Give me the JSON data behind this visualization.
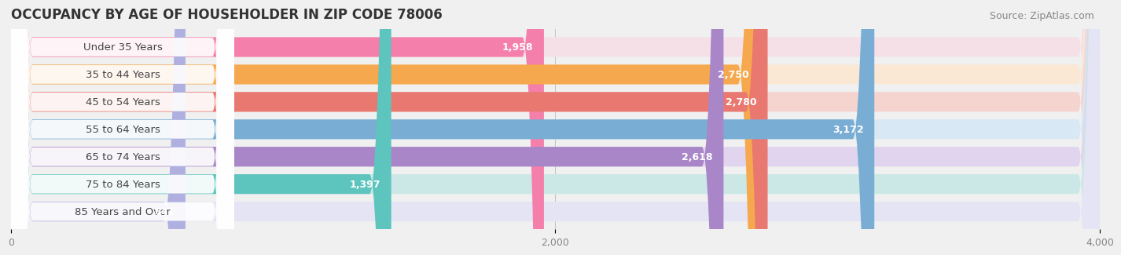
{
  "title": "OCCUPANCY BY AGE OF HOUSEHOLDER IN ZIP CODE 78006",
  "source": "Source: ZipAtlas.com",
  "categories": [
    "Under 35 Years",
    "35 to 44 Years",
    "45 to 54 Years",
    "55 to 64 Years",
    "65 to 74 Years",
    "75 to 84 Years",
    "85 Years and Over"
  ],
  "values": [
    1958,
    2750,
    2780,
    3172,
    2618,
    1397,
    641
  ],
  "bar_colors": [
    "#F47FAA",
    "#F5A84E",
    "#E87870",
    "#7AADD4",
    "#A886C8",
    "#5EC4BE",
    "#B0B0E0"
  ],
  "bar_bg_colors": [
    "#F5E0E8",
    "#FAE8D4",
    "#F5D4D0",
    "#D8E8F4",
    "#E0D4EE",
    "#CCE8E6",
    "#E4E4F4"
  ],
  "label_bg_color": "#FFFFFF",
  "xlim": [
    0,
    4000
  ],
  "xticks": [
    0,
    2000,
    4000
  ],
  "title_fontsize": 12,
  "source_fontsize": 9,
  "label_fontsize": 9.5,
  "value_fontsize": 9,
  "bar_height": 0.72,
  "background_color": "#f0f0f0",
  "value_threshold": 500
}
